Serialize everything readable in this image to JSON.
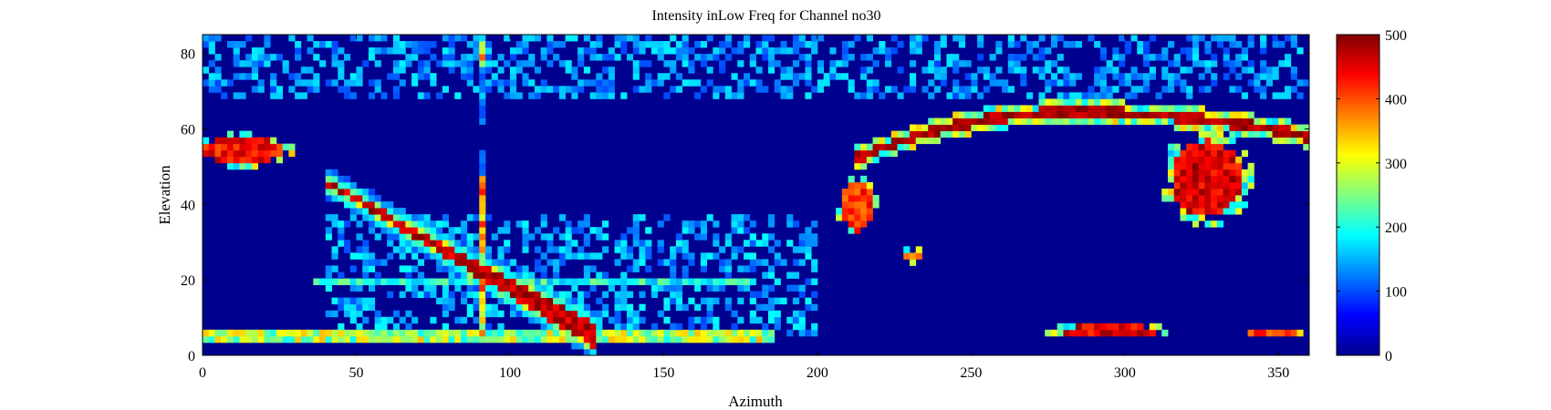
{
  "chart_data": {
    "type": "heatmap",
    "title": "Intensity inLow Freq for Channel no30",
    "xlabel": "Azimuth",
    "ylabel": "Elevation",
    "xlim": [
      0,
      360
    ],
    "ylim": [
      0,
      85
    ],
    "xticks": [
      0,
      50,
      100,
      150,
      200,
      250,
      300,
      350
    ],
    "yticks": [
      0,
      20,
      40,
      60,
      80
    ],
    "colorbar": {
      "range": [
        0,
        500
      ],
      "ticks": [
        0,
        100,
        200,
        300,
        400,
        500
      ],
      "colormap": "jet"
    },
    "grid": false,
    "background_value": 25,
    "features": [
      {
        "kind": "band",
        "x": [
          40,
          128
        ],
        "y": [
          46,
          5
        ],
        "value": 500,
        "halo": 260
      },
      {
        "kind": "column",
        "x": 90.5,
        "y": [
          5,
          83
        ],
        "value": 420
      },
      {
        "kind": "arc",
        "x": [
          212,
          360
        ],
        "y_center": 64.5,
        "y_ends": [
          52,
          58
        ],
        "value": 500
      },
      {
        "kind": "blob",
        "x": [
          315,
          338
        ],
        "y": [
          37,
          57
        ],
        "value": 500
      },
      {
        "kind": "blob",
        "x": [
          0,
          26
        ],
        "y": [
          51,
          58
        ],
        "value": 480
      },
      {
        "kind": "blob",
        "x": [
          208,
          218
        ],
        "y": [
          33,
          46
        ],
        "value": 450
      },
      {
        "kind": "blob",
        "x": [
          228,
          234
        ],
        "y": [
          25,
          28
        ],
        "value": 420
      },
      {
        "kind": "blob",
        "x": [
          278,
          312
        ],
        "y": [
          5,
          8
        ],
        "value": 500
      },
      {
        "kind": "blob",
        "x": [
          340,
          356
        ],
        "y": [
          5,
          7
        ],
        "value": 450
      },
      {
        "kind": "noise",
        "x": [
          0,
          360
        ],
        "y": [
          68,
          85
        ],
        "value": 110
      },
      {
        "kind": "noise",
        "x": [
          40,
          200
        ],
        "y": [
          5,
          38
        ],
        "value": 120
      },
      {
        "kind": "streak",
        "x": [
          36,
          180
        ],
        "y": 20,
        "value": 200
      },
      {
        "kind": "streak",
        "x": [
          0,
          186
        ],
        "y": 5,
        "value": 300
      }
    ]
  }
}
